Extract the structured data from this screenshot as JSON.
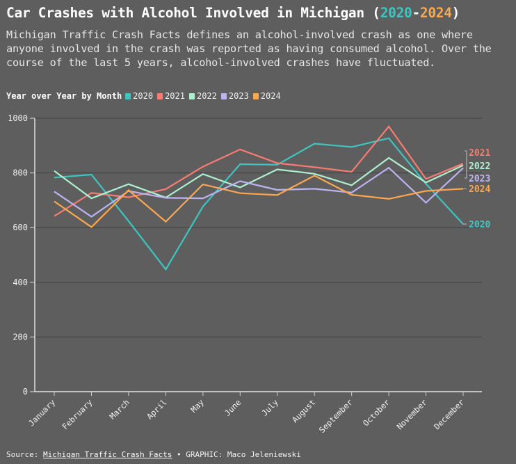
{
  "header": {
    "title_prefix": "Car Crashes with Alcohol Involved in Michigan (",
    "title_year_start": "2020",
    "title_dash": "-",
    "title_year_end": "2024",
    "title_suffix": ")",
    "subtitle": "Michigan Traffic Crash Facts defines an alcohol-involved crash as one where anyone involved in the crash was reported as having consumed alcohol. Over the course of the last 5 years, alcohol-involved crashes have fluctuated."
  },
  "legend": {
    "title": "Year over Year by Month",
    "items": [
      {
        "label": "2020",
        "color": "#3ec5c1"
      },
      {
        "label": "2021",
        "color": "#f87c72"
      },
      {
        "label": "2022",
        "color": "#adf0d0"
      },
      {
        "label": "2023",
        "color": "#bcb3f0"
      },
      {
        "label": "2024",
        "color": "#fba74e"
      }
    ]
  },
  "footer": {
    "source_prefix": "Source: ",
    "source_link": "Michigan Traffic Crash Facts",
    "separator": " • ",
    "credit": "GRAPHIC: Maco Jeleniewski"
  },
  "chart_data": {
    "type": "line",
    "title": "Car Crashes with Alcohol Involved in Michigan (2020-2024)",
    "xlabel": "",
    "ylabel": "",
    "ylim": [
      0,
      1000
    ],
    "yticks": [
      0,
      200,
      400,
      600,
      800,
      1000
    ],
    "grid": true,
    "legend_position": "top-left",
    "categories": [
      "January",
      "February",
      "March",
      "April",
      "May",
      "June",
      "July",
      "August",
      "September",
      "October",
      "November",
      "December"
    ],
    "series": [
      {
        "name": "2020",
        "color": "#3ec5c1",
        "values": [
          783,
          794,
          624,
          447,
          677,
          832,
          830,
          907,
          895,
          927,
          760,
          613
        ]
      },
      {
        "name": "2021",
        "color": "#f87c72",
        "values": [
          642,
          727,
          711,
          741,
          823,
          886,
          836,
          821,
          804,
          970,
          778,
          834
        ]
      },
      {
        "name": "2022",
        "color": "#adf0d0",
        "values": [
          807,
          707,
          759,
          710,
          796,
          747,
          813,
          797,
          755,
          855,
          765,
          828
        ]
      },
      {
        "name": "2023",
        "color": "#bcb3f0",
        "values": [
          732,
          640,
          734,
          709,
          707,
          770,
          738,
          742,
          728,
          819,
          691,
          818
        ]
      },
      {
        "name": "2024",
        "color": "#fba74e",
        "values": [
          696,
          602,
          737,
          622,
          758,
          726,
          719,
          790,
          720,
          705,
          734,
          742
        ]
      }
    ],
    "end_labels": [
      "2021",
      "2022",
      "2023",
      "2024",
      "2020"
    ]
  }
}
